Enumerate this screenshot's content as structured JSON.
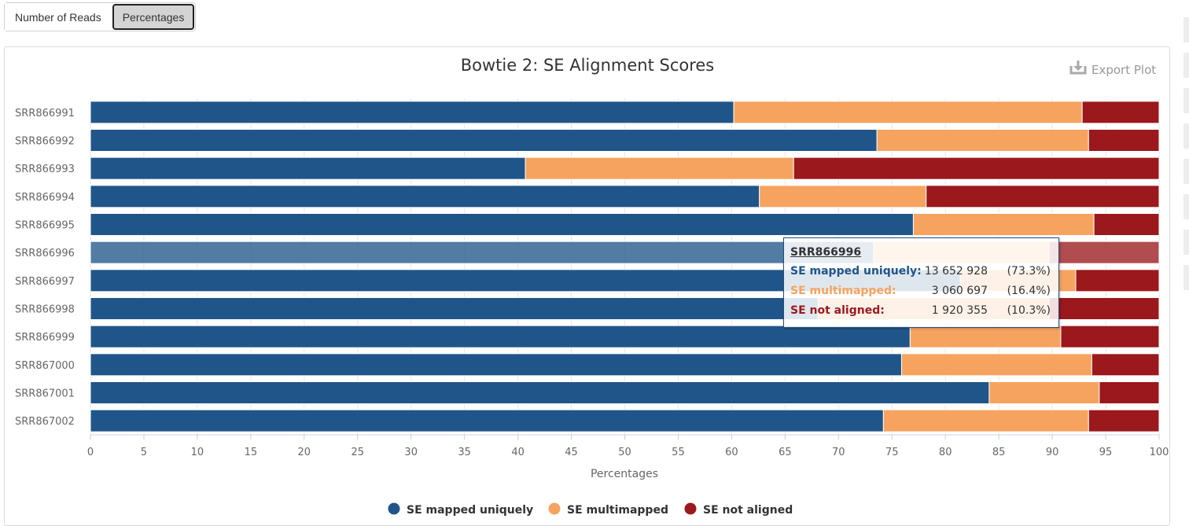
{
  "toolbar": {
    "number_of_reads_label": "Number of Reads",
    "percentages_label": "Percentages",
    "active": "Percentages"
  },
  "export_label": "Export Plot",
  "chart_data": {
    "type": "bar",
    "orientation": "horizontal",
    "stacked": true,
    "title": "Bowtie 2: SE Alignment Scores",
    "xlabel": "Percentages",
    "ylabel": "",
    "xlim": [
      0,
      100
    ],
    "x_ticks": [
      0,
      5,
      10,
      15,
      20,
      25,
      30,
      35,
      40,
      45,
      50,
      55,
      60,
      65,
      70,
      75,
      80,
      85,
      90,
      95,
      100
    ],
    "grid": true,
    "legend_position": "bottom-center",
    "categories": [
      "SRR866991",
      "SRR866992",
      "SRR866993",
      "SRR866994",
      "SRR866995",
      "SRR866996",
      "SRR866997",
      "SRR866998",
      "SRR866999",
      "SRR867000",
      "SRR867001",
      "SRR867002"
    ],
    "series": [
      {
        "name": "SE mapped uniquely",
        "color": "#20558a",
        "values": [
          60.2,
          73.6,
          40.7,
          62.6,
          77.0,
          73.3,
          81.4,
          68.1,
          76.7,
          75.9,
          84.1,
          74.2
        ]
      },
      {
        "name": "SE multimapped",
        "color": "#f6a35f",
        "values": [
          32.6,
          19.8,
          25.1,
          15.6,
          16.9,
          16.4,
          10.8,
          21.6,
          14.1,
          17.8,
          10.3,
          19.2
        ]
      },
      {
        "name": "SE not aligned",
        "color": "#9b181d",
        "values": [
          7.2,
          6.6,
          34.2,
          21.8,
          6.1,
          10.3,
          7.8,
          10.3,
          9.2,
          6.3,
          5.6,
          6.6
        ]
      }
    ],
    "highlighted_index": 5
  },
  "tooltip": {
    "sample": "SRR866996",
    "rows": [
      {
        "name": "SE mapped uniquely:",
        "value": "13 652 928",
        "pct": "(73.3%)",
        "color": "#20558a"
      },
      {
        "name": "SE multimapped:",
        "value": "3 060 697",
        "pct": "(16.4%)",
        "color": "#f6a35f"
      },
      {
        "name": "SE not aligned:",
        "value": "1 920 355",
        "pct": "(10.3%)",
        "color": "#9b181d"
      }
    ]
  }
}
